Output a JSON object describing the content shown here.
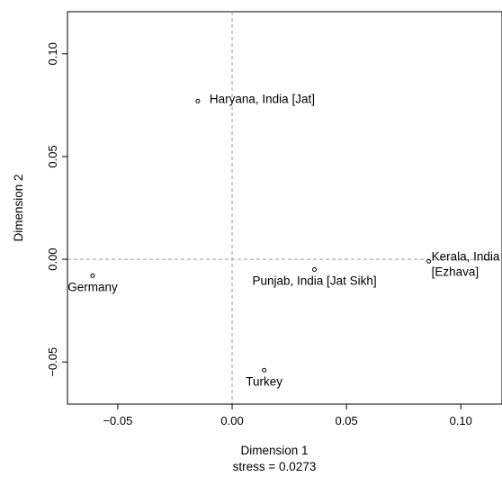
{
  "chart_data": {
    "type": "scatter",
    "title": "",
    "xlabel": "Dimension 1",
    "ylabel": "Dimension 2",
    "subtitle_below_xlabel": "stress = 0.0273",
    "xlim": [
      -0.072,
      0.118
    ],
    "ylim": [
      -0.0705,
      0.1205
    ],
    "x_ticks": [
      {
        "value": -0.05,
        "label": "−0.05"
      },
      {
        "value": 0.0,
        "label": "0.00"
      },
      {
        "value": 0.05,
        "label": "0.05"
      },
      {
        "value": 0.1,
        "label": "0.10"
      }
    ],
    "y_ticks": [
      {
        "value": -0.05,
        "label": "−0.05"
      },
      {
        "value": 0.0,
        "label": "0.00"
      },
      {
        "value": 0.05,
        "label": "0.05"
      },
      {
        "value": 0.1,
        "label": "0.10"
      }
    ],
    "reference_lines": {
      "x": 0,
      "y": 0,
      "style": "dashed"
    },
    "grid": false,
    "points": [
      {
        "name": "Haryana, India [Jat]",
        "x": -0.015,
        "y": 0.077,
        "label_pos": "right"
      },
      {
        "name": "Germany",
        "x": -0.061,
        "y": -0.008,
        "label_pos": "below"
      },
      {
        "name": "Punjab, India [Jat Sikh]",
        "x": 0.036,
        "y": -0.005,
        "label_pos": "below"
      },
      {
        "name": "Kerala, India\n[Ezhava]",
        "x": 0.086,
        "y": -0.001,
        "label_pos": "right"
      },
      {
        "name": "Turkey",
        "x": 0.014,
        "y": -0.054,
        "label_pos": "below"
      }
    ]
  }
}
